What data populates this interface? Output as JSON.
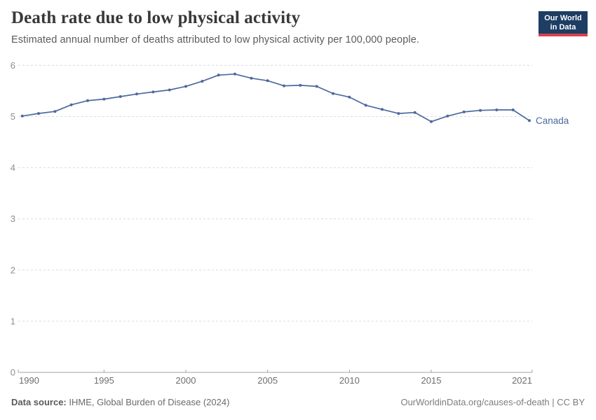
{
  "header": {
    "title": "Death rate due to low physical activity",
    "subtitle": "Estimated annual number of deaths attributed to low physical activity per 100,000 people."
  },
  "logo": {
    "line1": "Our World",
    "line2": "in Data"
  },
  "chart_data": {
    "type": "line",
    "title": "Death rate due to low physical activity",
    "x": [
      1990,
      1991,
      1992,
      1993,
      1994,
      1995,
      1996,
      1997,
      1998,
      1999,
      2000,
      2001,
      2002,
      2003,
      2004,
      2005,
      2006,
      2007,
      2008,
      2009,
      2010,
      2011,
      2012,
      2013,
      2014,
      2015,
      2016,
      2017,
      2018,
      2019,
      2020,
      2021
    ],
    "series": [
      {
        "name": "Canada",
        "values": [
          5.01,
          5.06,
          5.1,
          5.23,
          5.31,
          5.34,
          5.39,
          5.44,
          5.48,
          5.52,
          5.59,
          5.69,
          5.81,
          5.83,
          5.75,
          5.7,
          5.6,
          5.61,
          5.59,
          5.45,
          5.38,
          5.22,
          5.14,
          5.06,
          5.08,
          4.9,
          5.01,
          5.09,
          5.12,
          5.13,
          5.13,
          4.92
        ]
      }
    ],
    "xlabel": "",
    "ylabel": "",
    "xlim": [
      1990,
      2021
    ],
    "ylim": [
      0,
      6
    ],
    "x_tick_labels": [
      "1990",
      "1995",
      "2000",
      "2005",
      "2010",
      "2015",
      "2021"
    ],
    "x_tick_years": [
      1990,
      1995,
      2000,
      2005,
      2010,
      2015,
      2021
    ],
    "y_tick_labels": [
      "0",
      "1",
      "2",
      "3",
      "4",
      "5",
      "6"
    ],
    "y_tick_values": [
      0,
      1,
      2,
      3,
      4,
      5,
      6
    ],
    "grid": "horizontal-dashed",
    "legend_position": "end-of-line"
  },
  "footer": {
    "source_label": "Data source:",
    "source_text": " IHME, Global Burden of Disease (2024)",
    "credit": "OurWorldinData.org/causes-of-death | CC BY"
  },
  "colors": {
    "line": "#4c6a9c",
    "series_label": "#4c6a9c",
    "gridline": "#dcdcdc",
    "axis": "#a3a3a3",
    "x_tick_text": "#6e6e6e",
    "y_tick_text": "#8f8f8f"
  }
}
